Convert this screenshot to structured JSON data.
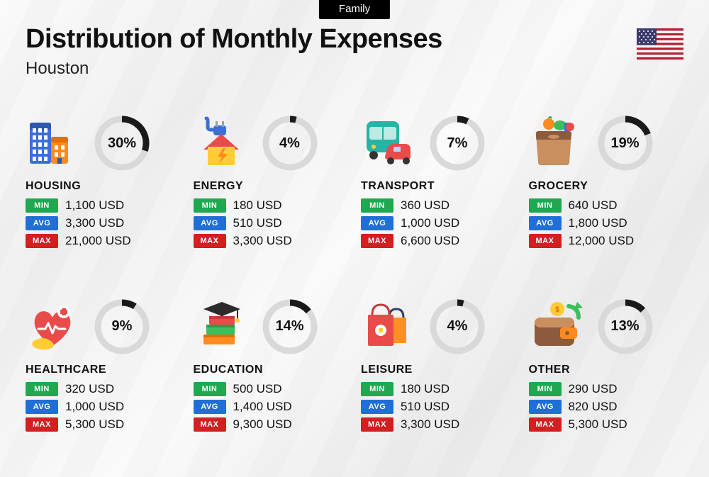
{
  "badge": "Family",
  "title": "Distribution of Monthly Expenses",
  "city": "Houston",
  "flag": {
    "bg": "#b22234",
    "stripe": "#ffffff",
    "canton": "#3c3b6e",
    "star": "#ffffff"
  },
  "ring": {
    "track_color": "#d9d9d9",
    "progress_color": "#1a1a1a",
    "stroke_width": 9,
    "radius": 34
  },
  "tags": {
    "min": {
      "label": "MIN",
      "bg": "#1fa84f"
    },
    "avg": {
      "label": "AVG",
      "bg": "#1f6fd6"
    },
    "max": {
      "label": "MAX",
      "bg": "#d21f1f"
    }
  },
  "currency_suffix": " USD",
  "categories": [
    {
      "key": "housing",
      "name": "HOUSING",
      "percent": 30,
      "min": "1,100",
      "avg": "3,300",
      "max": "21,000",
      "icon": "buildings"
    },
    {
      "key": "energy",
      "name": "ENERGY",
      "percent": 4,
      "min": "180",
      "avg": "510",
      "max": "3,300",
      "icon": "energy-house"
    },
    {
      "key": "transport",
      "name": "TRANSPORT",
      "percent": 7,
      "min": "360",
      "avg": "1,000",
      "max": "6,600",
      "icon": "bus-car"
    },
    {
      "key": "grocery",
      "name": "GROCERY",
      "percent": 19,
      "min": "640",
      "avg": "1,800",
      "max": "12,000",
      "icon": "grocery-bag"
    },
    {
      "key": "healthcare",
      "name": "HEALTHCARE",
      "percent": 9,
      "min": "320",
      "avg": "1,000",
      "max": "5,300",
      "icon": "health-heart"
    },
    {
      "key": "education",
      "name": "EDUCATION",
      "percent": 14,
      "min": "500",
      "avg": "1,400",
      "max": "9,300",
      "icon": "grad-books"
    },
    {
      "key": "leisure",
      "name": "LEISURE",
      "percent": 4,
      "min": "180",
      "avg": "510",
      "max": "3,300",
      "icon": "shopping-bags"
    },
    {
      "key": "other",
      "name": "OTHER",
      "percent": 13,
      "min": "290",
      "avg": "820",
      "max": "5,300",
      "icon": "wallet"
    }
  ],
  "icons": {
    "colors": {
      "blue": "#3b6fd8",
      "blue_dark": "#2e58b0",
      "orange": "#ff8a1f",
      "orange_dark": "#e06f0a",
      "red": "#e94b4b",
      "red_dark": "#c63a3a",
      "green": "#3bbf5c",
      "green_dark": "#2e9c49",
      "yellow": "#ffcc33",
      "yellow_dark": "#e0b320",
      "teal": "#27b3a6",
      "brown": "#8c5a3c",
      "tan": "#c98f5e",
      "navy": "#2d3e66",
      "gray": "#9aa0a6",
      "white": "#ffffff",
      "pink": "#ff6b81"
    }
  }
}
